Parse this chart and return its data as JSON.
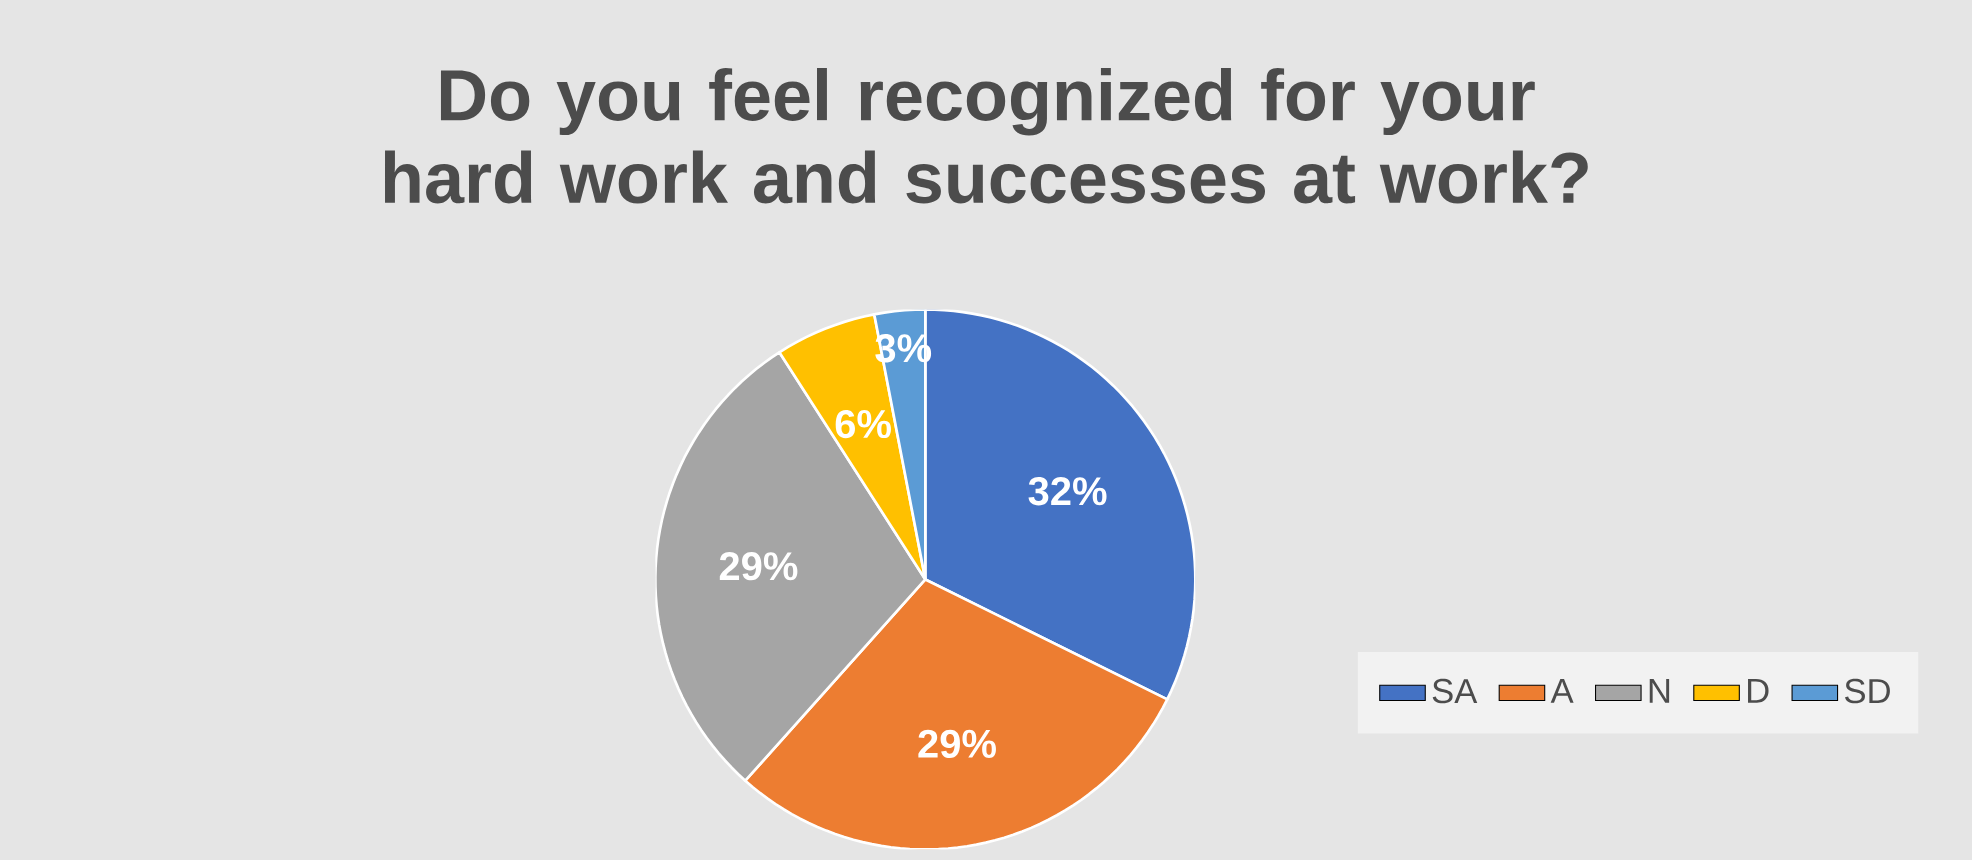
{
  "chart_data": {
    "type": "pie",
    "title": "Do you feel recognized for your hard work and successes at work?",
    "categories": [
      "SA",
      "A",
      "N",
      "D",
      "SD"
    ],
    "values": [
      32,
      29,
      29,
      6,
      3
    ],
    "value_labels": [
      "32%",
      "29%",
      "29%",
      "6%",
      "3%"
    ],
    "colors": [
      "#4472c4",
      "#ed7d31",
      "#a5a5a5",
      "#ffc000",
      "#5b9bd5"
    ],
    "legend": "right"
  }
}
